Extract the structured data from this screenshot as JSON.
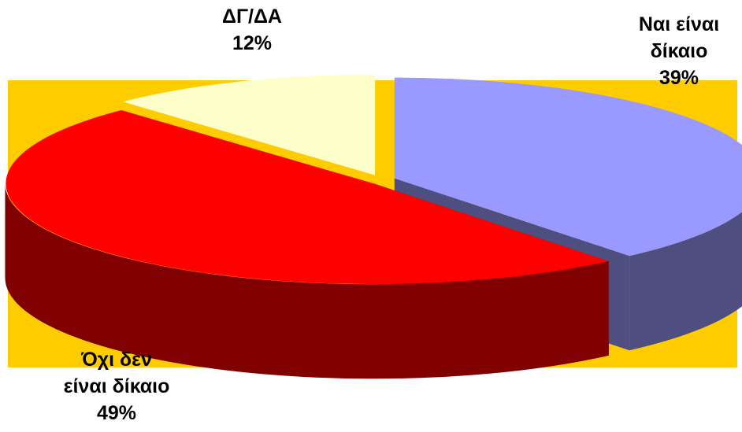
{
  "chart_data": {
    "type": "pie",
    "three_d": true,
    "categories": [
      "Ναι είναι δίκαιο",
      "Όχι δεν είναι δίκαιο",
      "ΔΓ/ΔΑ"
    ],
    "values": [
      39,
      49,
      12
    ],
    "percent_labels": [
      "39%",
      "49%",
      "12%"
    ],
    "label_lines": [
      [
        "Ναι είναι",
        "δίκαιο"
      ],
      [
        "Όχι δεν",
        "είναι δίκαιο"
      ],
      [
        "ΔΓ/ΔΑ"
      ]
    ],
    "colors": {
      "tops": [
        "#9999ff",
        "#ff0000",
        "#ffffcc"
      ],
      "sides": [
        "#4e4e80",
        "#800000",
        "#80806a"
      ],
      "plot_background": "#ffcc00",
      "frame_border": "#8f8f8f"
    },
    "exploded": true,
    "legend": "none"
  }
}
